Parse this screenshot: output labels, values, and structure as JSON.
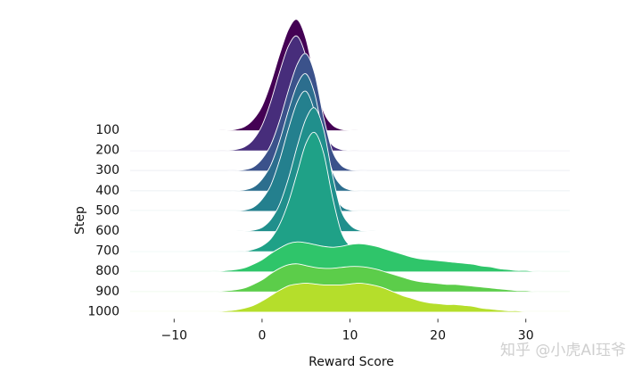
{
  "chart_data": {
    "type": "ridgeline",
    "xlabel": "Reward Score",
    "ylabel": "Step",
    "watermark": "知乎 @小虎AI珏爷",
    "xlim": [
      -15,
      35
    ],
    "xticks": [
      {
        "value": -10,
        "label": "−10"
      },
      0,
      10,
      20,
      30
    ],
    "x": [
      -15,
      -14,
      -13,
      -12,
      -11,
      -10,
      -9,
      -8,
      -7,
      -6,
      -5,
      -4,
      -3,
      -2,
      -1,
      0,
      1,
      2,
      3,
      4,
      5,
      6,
      7,
      8,
      9,
      10,
      11,
      12,
      13,
      14,
      15,
      16,
      17,
      18,
      19,
      20,
      21,
      22,
      23,
      24,
      25,
      26,
      27,
      28,
      29,
      30,
      31,
      32,
      33,
      34,
      35
    ],
    "series": [
      {
        "name": "100",
        "color": "#440154",
        "values": [
          0,
          0,
          0,
          0,
          0,
          0,
          0,
          0,
          0,
          0,
          0,
          0,
          1,
          4,
          12,
          27,
          53,
          85,
          113,
          124,
          102,
          57,
          21,
          6,
          1,
          0,
          0,
          0,
          0,
          0,
          0,
          0,
          0,
          0,
          0,
          0,
          0,
          0,
          0,
          0,
          0,
          0,
          0,
          0,
          0,
          0,
          0,
          0,
          0,
          0,
          0
        ]
      },
      {
        "name": "200",
        "color": "#472d7b",
        "values": [
          0,
          0,
          0,
          0,
          0,
          0,
          0,
          0,
          0,
          0,
          0,
          0,
          1,
          4,
          12,
          28,
          55,
          88,
          117,
          128,
          105,
          59,
          22,
          6,
          1,
          0,
          0,
          0,
          0,
          0,
          0,
          0,
          0,
          0,
          0,
          0,
          0,
          0,
          0,
          0,
          0,
          0,
          0,
          0,
          0,
          0,
          0,
          0,
          0,
          0,
          0
        ]
      },
      {
        "name": "300",
        "color": "#3b528b",
        "values": [
          0,
          0,
          0,
          0,
          0,
          0,
          0,
          0,
          0,
          0,
          0,
          0,
          0,
          1,
          4,
          13,
          29,
          56,
          90,
          119,
          131,
          108,
          60,
          22,
          6,
          1,
          0,
          0,
          0,
          0,
          0,
          0,
          0,
          0,
          0,
          0,
          0,
          0,
          0,
          0,
          0,
          0,
          0,
          0,
          0,
          0,
          0,
          0,
          0,
          0,
          0
        ]
      },
      {
        "name": "400",
        "color": "#2c6e8e",
        "values": [
          0,
          0,
          0,
          0,
          0,
          0,
          0,
          0,
          0,
          0,
          0,
          0,
          0,
          1,
          4,
          13,
          29,
          56,
          90,
          119,
          131,
          108,
          60,
          22,
          6,
          1,
          0,
          0,
          0,
          0,
          0,
          0,
          0,
          0,
          0,
          0,
          0,
          0,
          0,
          0,
          0,
          0,
          0,
          0,
          0,
          0,
          0,
          0,
          0,
          0,
          0
        ]
      },
      {
        "name": "500",
        "color": "#24808e",
        "values": [
          0,
          0,
          0,
          0,
          0,
          0,
          0,
          0,
          0,
          0,
          0,
          0,
          0,
          1,
          4,
          13,
          29,
          57,
          92,
          122,
          134,
          110,
          62,
          23,
          6,
          1,
          0,
          0,
          0,
          0,
          0,
          0,
          0,
          0,
          0,
          0,
          0,
          0,
          0,
          0,
          0,
          0,
          0,
          0,
          0,
          0,
          0,
          0,
          0,
          0,
          0
        ]
      },
      {
        "name": "600",
        "color": "#208f8c",
        "values": [
          0,
          0,
          0,
          0,
          0,
          0,
          0,
          0,
          0,
          0,
          0,
          0,
          0,
          0,
          1,
          4,
          13,
          30,
          59,
          95,
          126,
          138,
          114,
          63,
          23,
          7,
          1,
          0,
          0,
          0,
          0,
          0,
          0,
          0,
          0,
          0,
          0,
          0,
          0,
          0,
          0,
          0,
          0,
          0,
          0,
          0,
          0,
          0,
          0,
          0,
          0
        ]
      },
      {
        "name": "700",
        "color": "#1fa187",
        "values": [
          0,
          0,
          0,
          0,
          0,
          0,
          0,
          0,
          0,
          0,
          0,
          0,
          0,
          0,
          2,
          6,
          14,
          30,
          55,
          88,
          121,
          133,
          110,
          61,
          22,
          6,
          1,
          0,
          0,
          0,
          0,
          0,
          0,
          0,
          0,
          0,
          0,
          0,
          0,
          0,
          0,
          0,
          0,
          0,
          0,
          0,
          0,
          0,
          0,
          0,
          0
        ]
      },
      {
        "name": "800",
        "color": "#2fc56a",
        "values": [
          0,
          0,
          0,
          0,
          0,
          0,
          0,
          0,
          0,
          0,
          0,
          1,
          2,
          4,
          8,
          13,
          20,
          26,
          31,
          33,
          32,
          30,
          28,
          27,
          28,
          30,
          31,
          30,
          28,
          25,
          22,
          19,
          16,
          14,
          13,
          12,
          11,
          10,
          9,
          8,
          6,
          5,
          3,
          2,
          1,
          1,
          0,
          0,
          0,
          0,
          0
        ]
      },
      {
        "name": "900",
        "color": "#5ccd4a",
        "values": [
          0,
          0,
          0,
          0,
          0,
          0,
          0,
          0,
          0,
          0,
          0,
          1,
          2,
          4,
          8,
          13,
          20,
          26,
          30,
          31,
          29,
          27,
          26,
          26,
          27,
          28,
          28,
          27,
          25,
          22,
          19,
          16,
          13,
          11,
          10,
          9,
          8,
          8,
          7,
          6,
          5,
          4,
          3,
          2,
          1,
          1,
          0,
          0,
          0,
          0,
          0
        ]
      },
      {
        "name": "1000",
        "color": "#b5de2b",
        "values": [
          0,
          0,
          0,
          0,
          0,
          0,
          0,
          0,
          0,
          0,
          0,
          1,
          2,
          4,
          7,
          12,
          18,
          24,
          29,
          31,
          32,
          31,
          30,
          30,
          30,
          31,
          32,
          31,
          29,
          26,
          22,
          18,
          15,
          12,
          10,
          9,
          8,
          8,
          7,
          6,
          4,
          3,
          2,
          1,
          1,
          0,
          0,
          0,
          0,
          0,
          0
        ]
      }
    ]
  }
}
